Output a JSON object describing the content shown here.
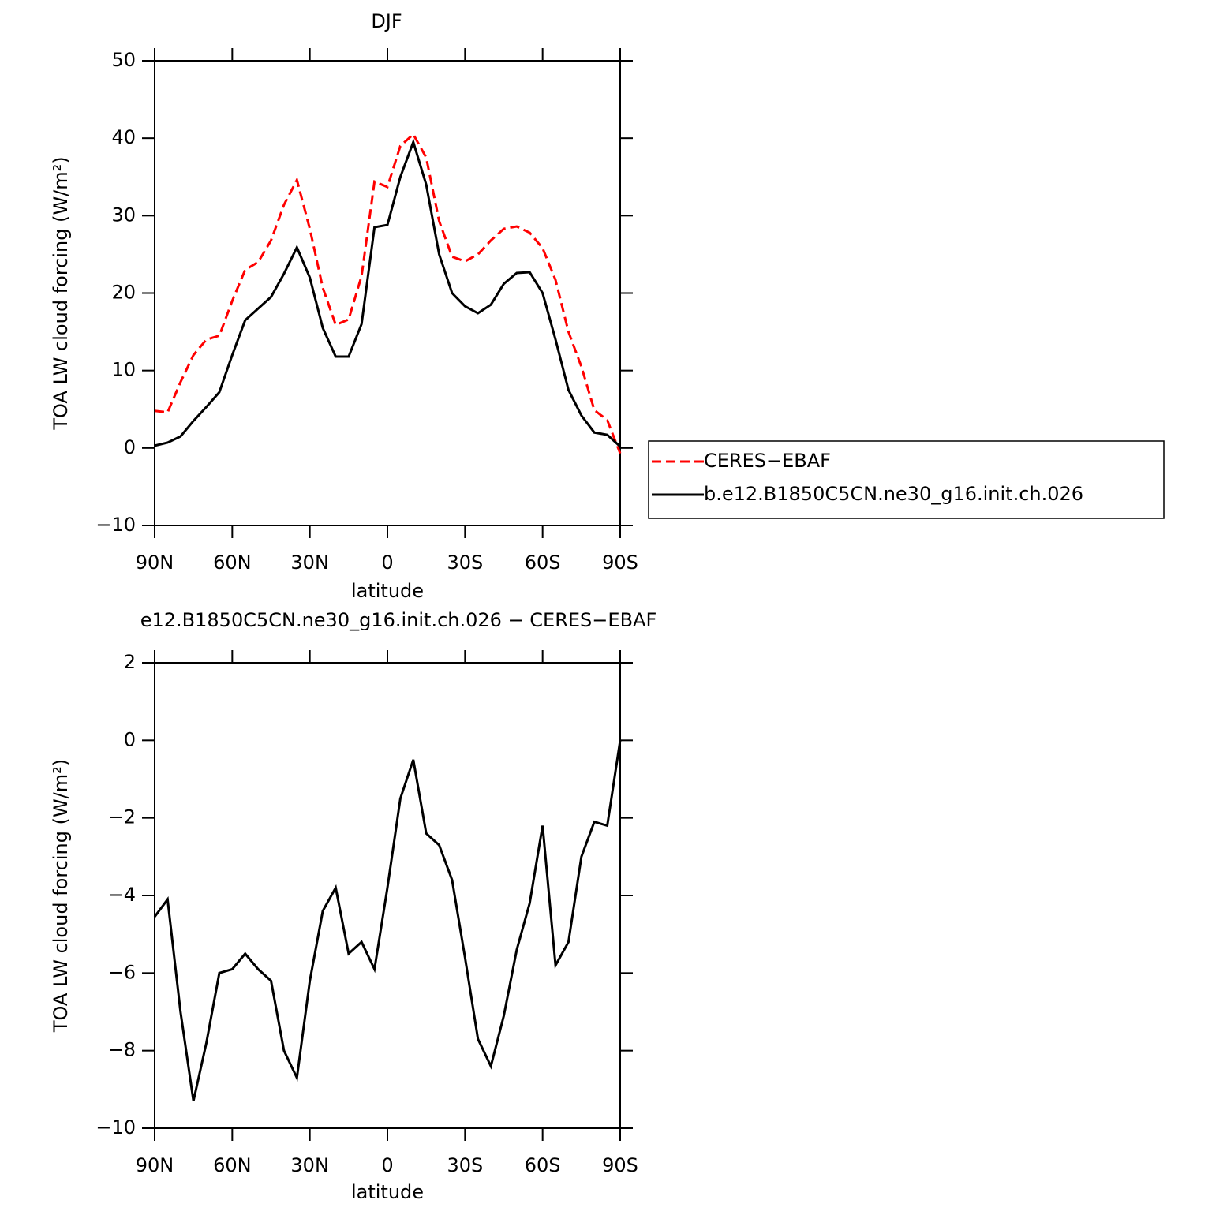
{
  "chart_data": [
    {
      "type": "line",
      "title": "DJF",
      "xlabel": "latitude",
      "ylabel": "TOA LW cloud forcing (W/m²)",
      "x": [
        90,
        85,
        80,
        75,
        70,
        65,
        60,
        55,
        50,
        45,
        40,
        35,
        30,
        25,
        20,
        15,
        10,
        5,
        0,
        -5,
        -10,
        -15,
        -20,
        -25,
        -30,
        -35,
        -40,
        -45,
        -50,
        -55,
        -60,
        -65,
        -70,
        -75,
        -80,
        -85,
        -90
      ],
      "xlim": [
        90,
        -90
      ],
      "xticks": [
        {
          "value": 90,
          "label": "90N"
        },
        {
          "value": 60,
          "label": "60N"
        },
        {
          "value": 30,
          "label": "30N"
        },
        0,
        {
          "value": -30,
          "label": "30S"
        },
        {
          "value": -60,
          "label": "60S"
        },
        {
          "value": -90,
          "label": "90S"
        }
      ],
      "ylim": [
        -10,
        50
      ],
      "yticks": [
        {
          "value": -10,
          "label": "−10"
        },
        0,
        10,
        20,
        30,
        40,
        50
      ],
      "legend": "right",
      "series": [
        {
          "name": "CERES−EBAF",
          "color": "#ff0000",
          "dashed": true,
          "values": [
            4.8,
            4.6,
            8.5,
            12,
            14,
            14.5,
            19,
            23,
            24,
            26.8,
            31.4,
            34.6,
            28.3,
            20.7,
            15.9,
            16.6,
            22.2,
            34.4,
            33.7,
            39,
            40.5,
            37.5,
            29.3,
            24.7,
            24.1,
            25,
            26.8,
            28.3,
            28.6,
            27.8,
            25.8,
            21.7,
            15,
            10.5,
            4.9,
            3.6,
            -0.7
          ]
        },
        {
          "name": "b.e12.B1850C5CN.ne30_g16.init.ch.026",
          "color": "#000000",
          "dashed": false,
          "values": [
            0.3,
            0.7,
            1.5,
            3.5,
            5.3,
            7.2,
            12,
            16.5,
            18,
            19.5,
            22.5,
            25.9,
            22,
            15.5,
            11.8,
            11.8,
            16,
            28.5,
            28.8,
            35,
            39.5,
            34,
            25,
            20,
            18.3,
            17.4,
            18.5,
            21.2,
            22.6,
            22.7,
            20,
            14,
            7.5,
            4.2,
            2,
            1.7,
            0.2
          ]
        }
      ]
    },
    {
      "type": "line",
      "title": "e12.B1850C5CN.ne30_g16.init.ch.026 − CERES−EBAF",
      "xlabel": "latitude",
      "ylabel": "TOA LW cloud forcing (W/m²)",
      "x": [
        90,
        85,
        80,
        75,
        70,
        65,
        60,
        55,
        50,
        45,
        40,
        35,
        30,
        25,
        20,
        15,
        10,
        5,
        0,
        -5,
        -10,
        -15,
        -20,
        -25,
        -30,
        -35,
        -40,
        -45,
        -50,
        -55,
        -60,
        -65,
        -70,
        -75,
        -80,
        -85,
        -90
      ],
      "xlim": [
        90,
        -90
      ],
      "xticks": [
        {
          "value": 90,
          "label": "90N"
        },
        {
          "value": 60,
          "label": "60N"
        },
        {
          "value": 30,
          "label": "30N"
        },
        0,
        {
          "value": -30,
          "label": "30S"
        },
        {
          "value": -60,
          "label": "60S"
        },
        {
          "value": -90,
          "label": "90S"
        }
      ],
      "ylim": [
        -10,
        2
      ],
      "yticks": [
        {
          "value": -10,
          "label": "−10"
        },
        {
          "value": -8,
          "label": "−8"
        },
        {
          "value": -6,
          "label": "−6"
        },
        {
          "value": -4,
          "label": "−4"
        },
        {
          "value": -2,
          "label": "−2"
        },
        0,
        2
      ],
      "series": [
        {
          "color": "#000000",
          "dashed": false,
          "values": [
            -4.55,
            -4.1,
            -7,
            -9.3,
            -7.8,
            -6,
            -5.9,
            -5.5,
            -5.9,
            -6.2,
            -8,
            -8.7,
            -6.2,
            -4.4,
            -3.8,
            -5.5,
            -5.2,
            -5.9,
            -3.8,
            -1.5,
            -0.5,
            -2.4,
            -2.7,
            -3.6,
            -5.6,
            -7.7,
            -8.4,
            -7.1,
            -5.4,
            -4.2,
            -2.2,
            -5.8,
            -5.2,
            -3,
            -2.1,
            -2.2,
            0
          ]
        }
      ]
    }
  ]
}
